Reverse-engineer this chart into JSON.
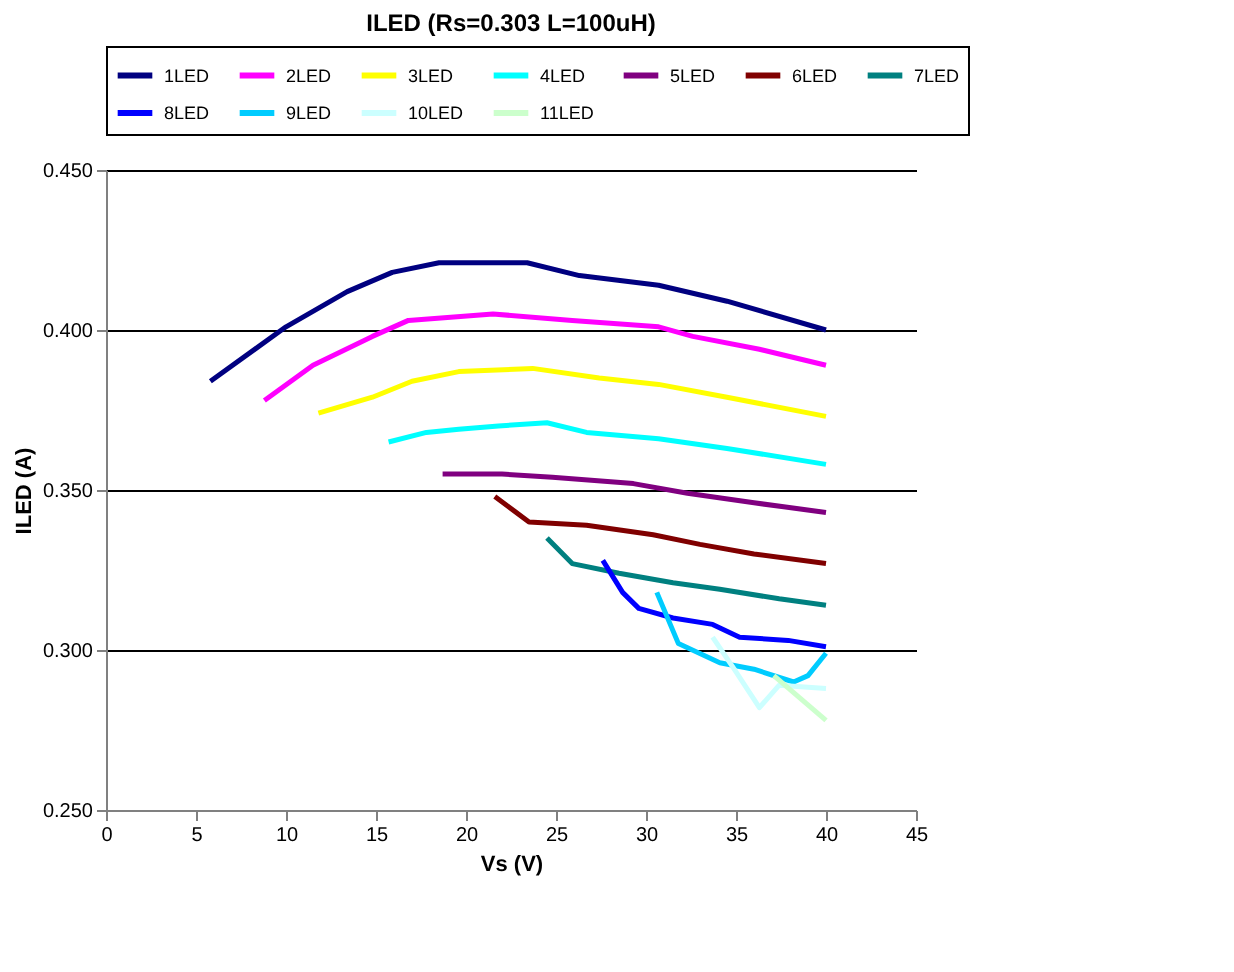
{
  "chart_data": {
    "type": "line",
    "title": "ILED (Rs=0.303 L=100uH)",
    "xlabel": "Vs (V)",
    "ylabel": "ILED (A)",
    "xlim": [
      0,
      45
    ],
    "xticks": [
      0,
      5,
      10,
      15,
      20,
      25,
      30,
      35,
      40,
      45
    ],
    "ylim": [
      0.25,
      0.45
    ],
    "yticks": [
      {
        "value": 0.25,
        "label": "0.250"
      },
      {
        "value": 0.3,
        "label": "0.300"
      },
      {
        "value": 0.35,
        "label": "0.350"
      },
      {
        "value": 0.4,
        "label": "0.400"
      },
      {
        "value": 0.45,
        "label": "0.450"
      }
    ],
    "grid": "y",
    "legend": "top",
    "marker": "none",
    "line_style": "solid",
    "series": [
      {
        "name": "1LED",
        "color": "#000080",
        "x": [
          5.8,
          10,
          13.4,
          15.9,
          18.5,
          23.4,
          26.3,
          30.7,
          34.5,
          40
        ],
        "values": [
          0.384,
          0.401,
          0.412,
          0.418,
          0.421,
          0.421,
          0.417,
          0.414,
          0.409,
          0.4
        ]
      },
      {
        "name": "2LED",
        "color": "#ff00ff",
        "x": [
          8.8,
          11.5,
          14.8,
          16.8,
          21.5,
          25.9,
          30.7,
          32.6,
          36.3,
          40
        ],
        "values": [
          0.378,
          0.389,
          0.398,
          0.403,
          0.405,
          0.403,
          0.401,
          0.398,
          0.394,
          0.389
        ]
      },
      {
        "name": "3LED",
        "color": "#ffff00",
        "x": [
          11.8,
          14.8,
          17,
          19.6,
          23.7,
          27.4,
          30.7,
          34.5,
          40
        ],
        "values": [
          0.374,
          0.379,
          0.384,
          0.387,
          0.388,
          0.385,
          0.383,
          0.379,
          0.373
        ]
      },
      {
        "name": "4LED",
        "color": "#00ffff",
        "x": [
          15.7,
          17.8,
          19.6,
          21.8,
          24.5,
          26.7,
          30.7,
          34.5,
          40
        ],
        "values": [
          0.365,
          0.368,
          0.369,
          0.37,
          0.371,
          0.368,
          0.366,
          0.363,
          0.358
        ]
      },
      {
        "name": "5LED",
        "color": "#800080",
        "x": [
          18.7,
          22,
          24.8,
          29.3,
          32.3,
          36,
          40
        ],
        "values": [
          0.355,
          0.355,
          0.354,
          0.352,
          0.349,
          0.346,
          0.343
        ]
      },
      {
        "name": "6LED",
        "color": "#800000",
        "x": [
          21.6,
          23.5,
          26.7,
          30.4,
          33,
          36,
          40
        ],
        "values": [
          0.348,
          0.34,
          0.339,
          0.336,
          0.333,
          0.33,
          0.327
        ]
      },
      {
        "name": "7LED",
        "color": "#008080",
        "x": [
          24.5,
          25.9,
          28.5,
          31.5,
          34.1,
          37.4,
          40
        ],
        "values": [
          0.335,
          0.327,
          0.324,
          0.321,
          0.319,
          0.316,
          0.314
        ]
      },
      {
        "name": "8LED",
        "color": "#0000ff",
        "x": [
          27.6,
          28.7,
          29.6,
          31.5,
          33.7,
          35.2,
          37.9,
          40
        ],
        "values": [
          0.328,
          0.318,
          0.313,
          0.31,
          0.308,
          0.304,
          0.303,
          0.301
        ]
      },
      {
        "name": "9LED",
        "color": "#00ccff",
        "x": [
          30.6,
          31.8,
          34.1,
          36,
          38.2,
          39,
          40
        ],
        "values": [
          0.318,
          0.302,
          0.296,
          0.294,
          0.29,
          0.292,
          0.299
        ]
      },
      {
        "name": "10LED",
        "color": "#ccffff",
        "x": [
          33.7,
          34.9,
          36.3,
          37.4,
          40
        ],
        "values": [
          0.304,
          0.294,
          0.282,
          0.289,
          0.288
        ]
      },
      {
        "name": "11LED",
        "color": "#ccffcc",
        "x": [
          37.1,
          40
        ],
        "values": [
          0.292,
          0.278
        ]
      }
    ]
  }
}
